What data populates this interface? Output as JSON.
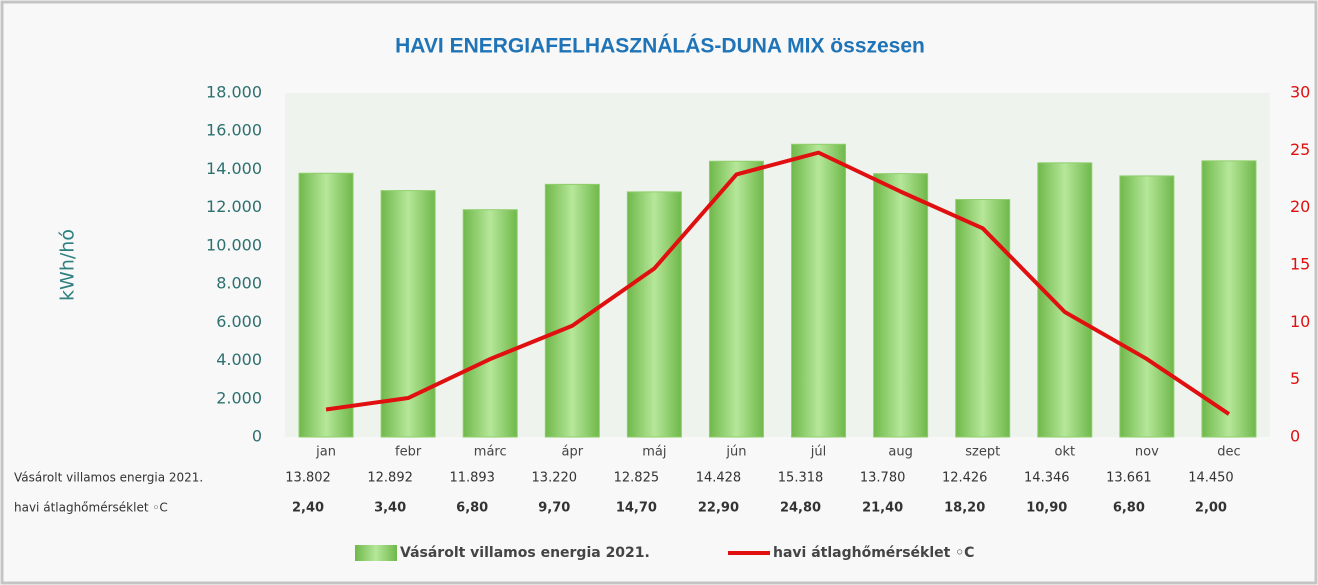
{
  "chart_data": {
    "type": "bar",
    "title": "HAVI ENERGIAFELHASZNÁLÁS-DUNA MIX összesen",
    "ylabel": "kWh/hó",
    "categories": [
      "jan",
      "febr",
      "márc",
      "ápr",
      "máj",
      "jún",
      "júl",
      "aug",
      "szept",
      "okt",
      "nov",
      "dec"
    ],
    "series": [
      {
        "name": "Vásárolt villamos energia 2021.",
        "type": "bar",
        "color": "#8fcf6a",
        "values": [
          13802,
          12892,
          11893,
          13220,
          12825,
          14428,
          15318,
          13780,
          12426,
          14346,
          13661,
          14450
        ],
        "value_labels": [
          "13.802",
          "12.892",
          "11.893",
          "13.220",
          "12.825",
          "14.428",
          "15.318",
          "13.780",
          "12.426",
          "14.346",
          "13.661",
          "14.450"
        ]
      },
      {
        "name": "havi átlaghőmérséklet ◦C",
        "type": "line",
        "axis": "y2",
        "color": "#e01010",
        "values": [
          2.4,
          3.4,
          6.8,
          9.7,
          14.7,
          22.9,
          24.8,
          21.4,
          18.2,
          10.9,
          6.8,
          2.0
        ],
        "value_labels": [
          "2,40",
          "3,40",
          "6,80",
          "9,70",
          "14,70",
          "22,90",
          "24,80",
          "21,40",
          "18,20",
          "10,90",
          "6,80",
          "2,00"
        ]
      }
    ],
    "ylim": [
      0,
      18000
    ],
    "yticks": [
      0,
      {
        "value": 2000,
        "label": "2.000"
      },
      {
        "value": 4000,
        "label": "4.000"
      },
      {
        "value": 6000,
        "label": "6.000"
      },
      {
        "value": 8000,
        "label": "8.000"
      },
      {
        "value": 10000,
        "label": "10.000"
      },
      {
        "value": 12000,
        "label": "12.000"
      },
      {
        "value": 14000,
        "label": "14.000"
      },
      {
        "value": 16000,
        "label": "16.000"
      },
      {
        "value": 18000,
        "label": "18.000"
      }
    ],
    "y2lim": [
      0,
      30
    ],
    "y2ticks": [
      0,
      5,
      10,
      15,
      20,
      25,
      30
    ],
    "grid": false,
    "legend": "bottom"
  }
}
